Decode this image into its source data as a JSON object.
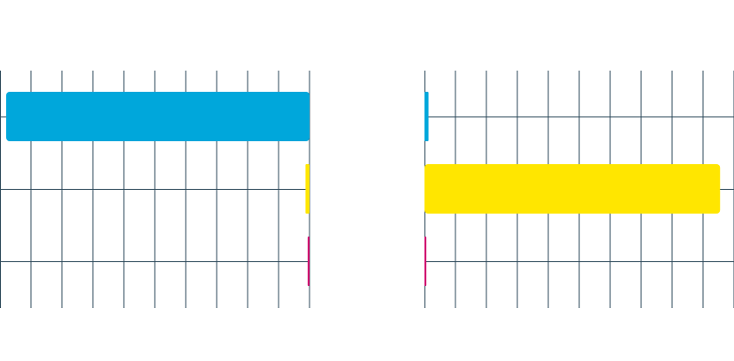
{
  "colors": {
    "grid": "#2e4a5b",
    "background": "#ffffff"
  },
  "chart_data": [
    {
      "type": "bar",
      "orientation": "horizontal",
      "direction": "right-to-left",
      "categories": [
        "",
        "",
        ""
      ],
      "values": [
        98,
        1.3,
        0.6
      ],
      "colors": [
        "#00a7db",
        "#ffe600",
        "#d0006f"
      ],
      "xlim": [
        0,
        100
      ],
      "grid": true,
      "xlabel": "",
      "ylabel": "",
      "title": ""
    },
    {
      "type": "bar",
      "orientation": "horizontal",
      "direction": "left-to-right",
      "categories": [
        "",
        "",
        ""
      ],
      "values": [
        1.3,
        95.5,
        0.6
      ],
      "colors": [
        "#00a7db",
        "#ffe600",
        "#d0006f"
      ],
      "xlim": [
        0,
        100
      ],
      "grid": true,
      "xlabel": "",
      "ylabel": "",
      "title": ""
    }
  ]
}
